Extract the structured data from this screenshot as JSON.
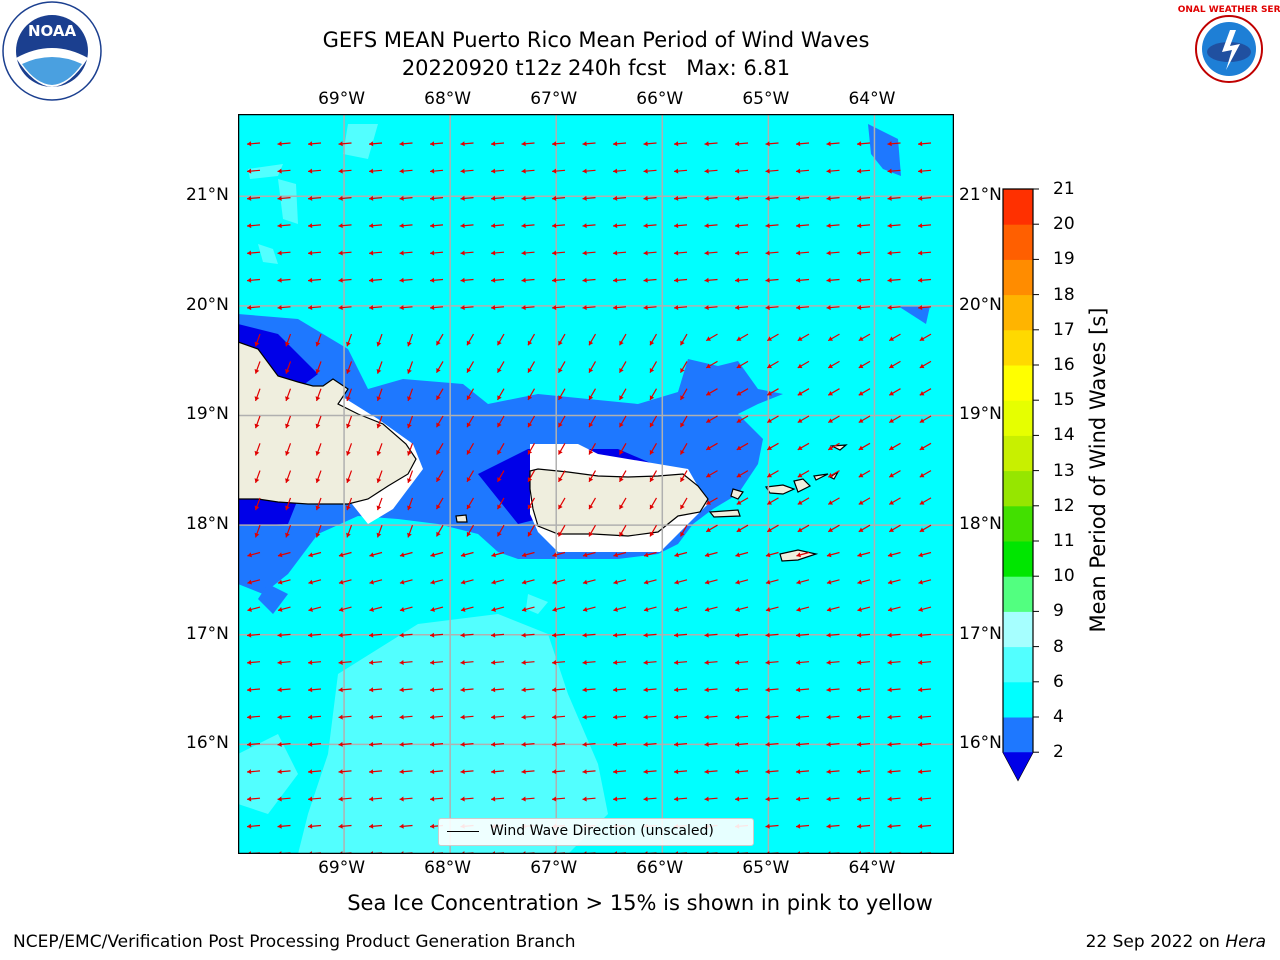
{
  "title": {
    "line1": "GEFS MEAN Puerto Rico Mean Period of Wind Waves",
    "line2": "20220920 t12z 240h fcst   Max: 6.81"
  },
  "logos": {
    "left": {
      "icon": "noaa-logo",
      "text": "NOAA"
    },
    "right": {
      "icon": "nws-logo",
      "text": "NATIONAL WEATHER SERVICE"
    }
  },
  "map": {
    "extent": {
      "lon_min": -70.0,
      "lon_max": -63.25,
      "lat_min": 15.0,
      "lat_max": 21.75
    },
    "lon_ticks": [
      "69°W",
      "68°W",
      "67°W",
      "66°W",
      "65°W",
      "64°W"
    ],
    "lon_values": [
      -69,
      -68,
      -67,
      -66,
      -65,
      -64
    ],
    "lat_ticks": [
      "21°N",
      "20°N",
      "19°N",
      "18°N",
      "17°N",
      "16°N"
    ],
    "lat_values": [
      21,
      20,
      19,
      18,
      17,
      16
    ],
    "legend": "Wind Wave Direction (unscaled)",
    "colors": {
      "ocean_4_6": "#00ffff",
      "ocean_6_8": "#52ffff",
      "ocean_2_4": "#1e78ff",
      "ocean_lt2": "#0000e8",
      "land": "#efeede",
      "arrow": "#e00000",
      "grid": "#b0b0b0"
    }
  },
  "colorbar": {
    "title": "Mean Period of Wind Waves [s]",
    "ticks": [
      "2",
      "4",
      "6",
      "8",
      "9",
      "10",
      "11",
      "12",
      "13",
      "14",
      "15",
      "16",
      "17",
      "18",
      "19",
      "20",
      "21"
    ],
    "colors": [
      "#1e78ff",
      "#00ffff",
      "#52ffff",
      "#a6ffff",
      "#52ff80",
      "#00e600",
      "#42e000",
      "#96e600",
      "#c8f000",
      "#e6ff00",
      "#ffff00",
      "#ffd900",
      "#ffb400",
      "#ff8c00",
      "#ff5f00",
      "#ff3000",
      "#ff0000"
    ],
    "extend_color": "#0000e8"
  },
  "footer": {
    "note": "Sea Ice Concentration > 15% is shown in pink to yellow",
    "credit": "NCEP/EMC/Verification Post Processing Product Generation Branch",
    "date": "22 Sep 2022 on",
    "host": "Hera"
  }
}
